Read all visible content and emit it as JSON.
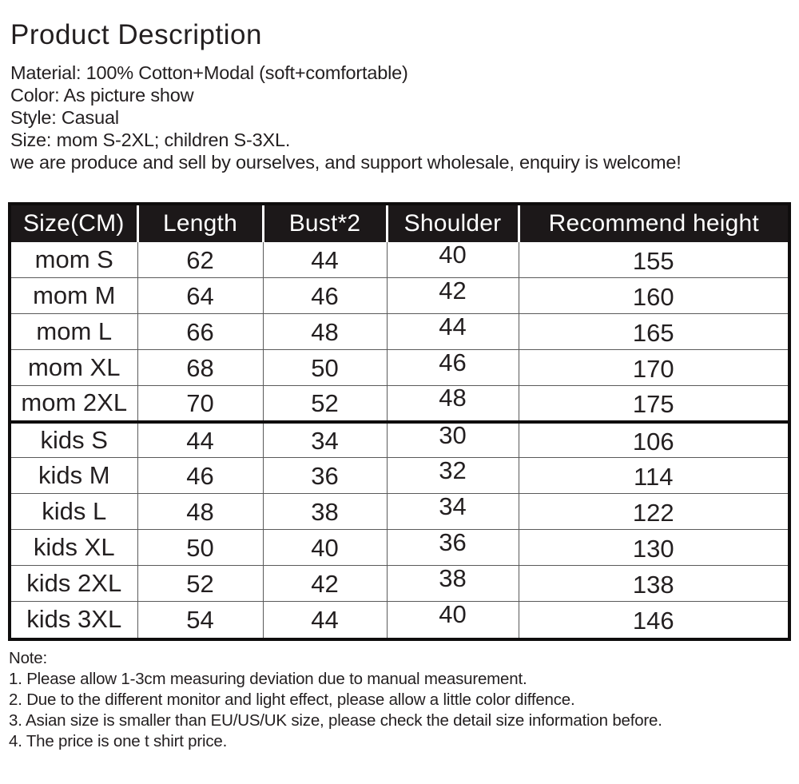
{
  "header": {
    "title": "Product Description",
    "details": [
      "Material: 100% Cotton+Modal (soft+comfortable)",
      "Color: As picture show",
      "Style: Casual",
      "Size: mom S-2XL; children S-3XL.",
      "we are produce and sell by ourselves, and support wholesale, enquiry is welcome!"
    ]
  },
  "size_table": {
    "headers": [
      "Size(CM)",
      "Length",
      "Bust*2",
      "Shoulder",
      "Recommend height"
    ],
    "mom_rows": [
      [
        "mom S",
        "62",
        "44",
        "40",
        "155"
      ],
      [
        "mom M",
        "64",
        "46",
        "42",
        "160"
      ],
      [
        "mom L",
        "66",
        "48",
        "44",
        "165"
      ],
      [
        "mom XL",
        "68",
        "50",
        "46",
        "170"
      ],
      [
        "mom 2XL",
        "70",
        "52",
        "48",
        "175"
      ]
    ],
    "kids_rows": [
      [
        "kids S",
        "44",
        "34",
        "30",
        "106"
      ],
      [
        "kids M",
        "46",
        "36",
        "32",
        "114"
      ],
      [
        "kids L",
        "48",
        "38",
        "34",
        "122"
      ],
      [
        "kids XL",
        "50",
        "40",
        "36",
        "130"
      ],
      [
        "kids 2XL",
        "52",
        "42",
        "38",
        "138"
      ],
      [
        "kids 3XL",
        "54",
        "44",
        "40",
        "146"
      ]
    ]
  },
  "notes": {
    "label": "Note:",
    "items": [
      "1. Please allow 1-3cm measuring deviation due to manual measurement.",
      "2. Due to the different monitor and light effect, please allow a little color diffence.",
      "3. Asian size is smaller than EU/US/UK size, please check the detail size information before.",
      "4. The price is one t shirt price."
    ]
  },
  "colors": {
    "table_header_bg": "#1c1819",
    "table_header_text": "#ffffff",
    "text": "#231f20",
    "grid_line": "#5a5a5a",
    "table_frame": "#0f0d0d",
    "background": "#ffffff"
  }
}
